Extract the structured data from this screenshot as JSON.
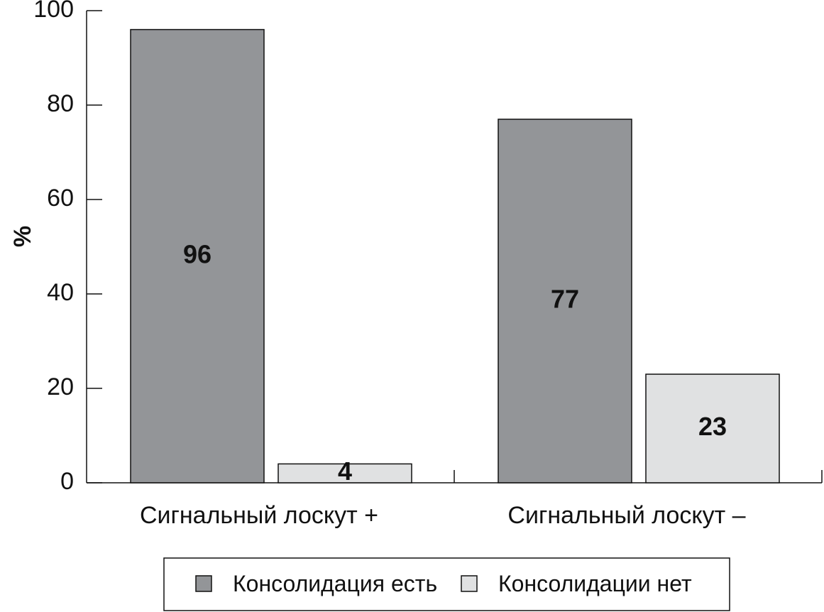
{
  "chart_data": {
    "type": "bar",
    "categories": [
      "Сигнальный лоскут +",
      "Сигнальный лоскут –"
    ],
    "series": [
      {
        "name": "Консолидация есть",
        "values": [
          96,
          77
        ],
        "color": "#939598"
      },
      {
        "name": "Консолидации нет",
        "values": [
          4,
          23
        ],
        "color": "#e0e1e2"
      }
    ],
    "ylabel": "%",
    "ylim": [
      0,
      100
    ],
    "yticks": [
      0,
      20,
      40,
      60,
      80,
      100
    ],
    "data_labels": true,
    "legend_position": "bottom",
    "grid": false
  }
}
